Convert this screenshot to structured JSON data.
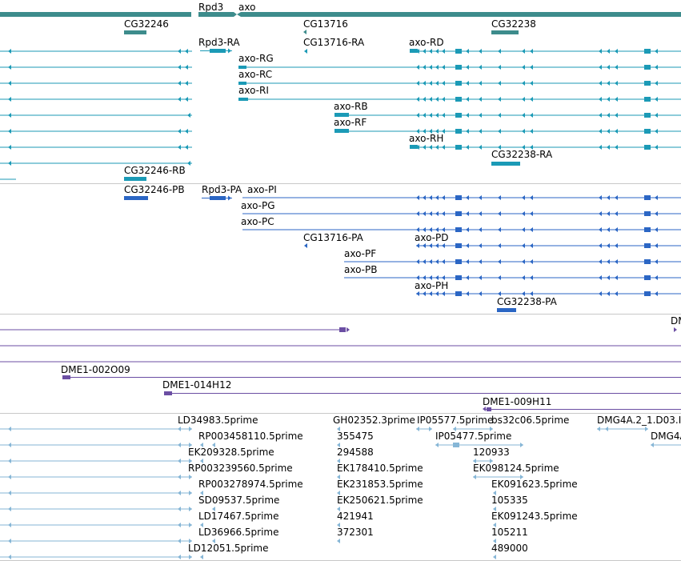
{
  "colors": {
    "gene": "#3d8c8c",
    "rna": "#1b9ab6",
    "protein": "#2b66c4",
    "clone": "#6b4ea3",
    "est": "#86b6d6",
    "divider": "#c8c8c8"
  },
  "genes": [
    {
      "id": "g-cg32246",
      "label": "CG32246"
    },
    {
      "id": "g-rpd3",
      "label": "Rpd3"
    },
    {
      "id": "g-axo",
      "label": "axo"
    },
    {
      "id": "g-cg13716",
      "label": "CG13716"
    },
    {
      "id": "g-cg32238",
      "label": "CG32238"
    }
  ],
  "transcripts": [
    {
      "id": "t-rpd3-ra",
      "label": "Rpd3-RA"
    },
    {
      "id": "t-cg13716-ra",
      "label": "CG13716-RA"
    },
    {
      "id": "t-axo-rd",
      "label": "axo-RD"
    },
    {
      "id": "t-axo-rg",
      "label": "axo-RG"
    },
    {
      "id": "t-axo-rc",
      "label": "axo-RC"
    },
    {
      "id": "t-axo-ri",
      "label": "axo-RI"
    },
    {
      "id": "t-axo-rb",
      "label": "axo-RB"
    },
    {
      "id": "t-axo-rf",
      "label": "axo-RF"
    },
    {
      "id": "t-axo-rh",
      "label": "axo-RH"
    },
    {
      "id": "t-cg32238-ra",
      "label": "CG32238-RA"
    },
    {
      "id": "t-cg32246-rb",
      "label": "CG32246-RB"
    }
  ],
  "proteins": [
    {
      "id": "p-cg32246-pb",
      "label": "CG32246-PB"
    },
    {
      "id": "p-rpd3-pa",
      "label": "Rpd3-PA"
    },
    {
      "id": "p-axo-pi",
      "label": "axo-PI"
    },
    {
      "id": "p-axo-pg",
      "label": "axo-PG"
    },
    {
      "id": "p-axo-pc",
      "label": "axo-PC"
    },
    {
      "id": "p-cg13716-pa",
      "label": "CG13716-PA"
    },
    {
      "id": "p-axo-pd",
      "label": "axo-PD"
    },
    {
      "id": "p-axo-pf",
      "label": "axo-PF"
    },
    {
      "id": "p-axo-pb",
      "label": "axo-PB"
    },
    {
      "id": "p-axo-ph",
      "label": "axo-PH"
    },
    {
      "id": "p-cg32238-pa",
      "label": "CG32238-PA"
    }
  ],
  "clones": [
    {
      "id": "c-dm-edge",
      "label": "DM"
    },
    {
      "id": "c-dme1-002o09",
      "label": "DME1-002O09"
    },
    {
      "id": "c-dme1-014h12",
      "label": "DME1-014H12"
    },
    {
      "id": "c-dme1-009h11",
      "label": "DME1-009H11"
    }
  ],
  "ests": [
    {
      "id": "e-ld34983",
      "label": "LD34983.5prime"
    },
    {
      "id": "e-rp003458110",
      "label": "RP003458110.5prime"
    },
    {
      "id": "e-ek209328",
      "label": "EK209328.5prime"
    },
    {
      "id": "e-rp003239560",
      "label": "RP003239560.5prime"
    },
    {
      "id": "e-rp003278974",
      "label": "RP003278974.5prime"
    },
    {
      "id": "e-sd09537",
      "label": "SD09537.5prime"
    },
    {
      "id": "e-ld17467",
      "label": "LD17467.5prime"
    },
    {
      "id": "e-ld36966",
      "label": "LD36966.5prime"
    },
    {
      "id": "e-ld12051",
      "label": "LD12051.5prime"
    },
    {
      "id": "e-gh02352",
      "label": "GH02352.3prime"
    },
    {
      "id": "e-ip05577",
      "label": "IP05577.5prime"
    },
    {
      "id": "e-bs32c06",
      "label": "bs32c06.5prime"
    },
    {
      "id": "e-dmg4a2",
      "label": "DMG4A.2_1.D03.I"
    },
    {
      "id": "e-355475",
      "label": "355475"
    },
    {
      "id": "e-ip05477",
      "label": "IP05477.5prime"
    },
    {
      "id": "e-dmg4a-edge",
      "label": "DMG4A"
    },
    {
      "id": "e-294588",
      "label": "294588"
    },
    {
      "id": "e-120933",
      "label": "120933"
    },
    {
      "id": "e-ek178410",
      "label": "EK178410.5prime"
    },
    {
      "id": "e-ek098124",
      "label": "EK098124.5prime"
    },
    {
      "id": "e-ek231853",
      "label": "EK231853.5prime"
    },
    {
      "id": "e-ek091623",
      "label": "EK091623.5prime"
    },
    {
      "id": "e-ek250621",
      "label": "EK250621.5prime"
    },
    {
      "id": "e-105335",
      "label": "105335"
    },
    {
      "id": "e-421941",
      "label": "421941"
    },
    {
      "id": "e-ek091243",
      "label": "EK091243.5prime"
    },
    {
      "id": "e-372301",
      "label": "372301"
    },
    {
      "id": "e-105211",
      "label": "105211"
    },
    {
      "id": "e-489000",
      "label": "489000"
    }
  ]
}
